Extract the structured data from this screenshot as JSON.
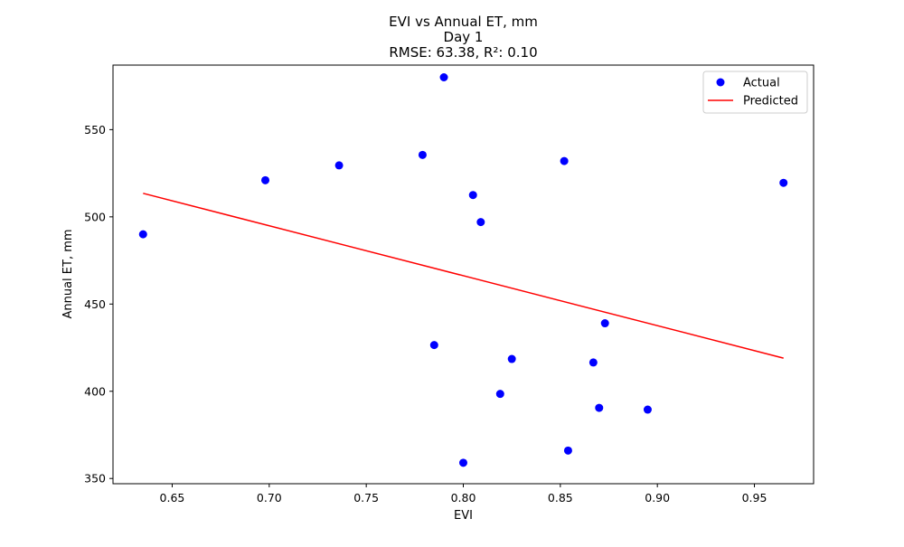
{
  "chart_data": {
    "type": "scatter",
    "title_lines": [
      "EVI vs Annual ET, mm",
      "Day 1",
      "RMSE: 63.38, R²: 0.10"
    ],
    "xlabel": "EVI",
    "ylabel": "Annual ET, mm",
    "xlim": [
      0.6195,
      0.9805
    ],
    "ylim": [
      347,
      587
    ],
    "xticks": [
      0.65,
      0.7,
      0.75,
      0.8,
      0.85,
      0.9,
      0.95
    ],
    "xtick_labels": [
      "0.65",
      "0.70",
      "0.75",
      "0.80",
      "0.85",
      "0.90",
      "0.95"
    ],
    "yticks": [
      350,
      400,
      450,
      500,
      550
    ],
    "ytick_labels": [
      "350",
      "400",
      "450",
      "500",
      "550"
    ],
    "grid": false,
    "legend_position": "top-right",
    "series": [
      {
        "name": "Actual",
        "kind": "scatter",
        "color": "#0000ff",
        "points": [
          {
            "x": 0.635,
            "y": 490
          },
          {
            "x": 0.698,
            "y": 521
          },
          {
            "x": 0.736,
            "y": 529.5
          },
          {
            "x": 0.779,
            "y": 535.5
          },
          {
            "x": 0.785,
            "y": 426.5
          },
          {
            "x": 0.79,
            "y": 580
          },
          {
            "x": 0.8,
            "y": 359
          },
          {
            "x": 0.805,
            "y": 512.5
          },
          {
            "x": 0.809,
            "y": 497
          },
          {
            "x": 0.819,
            "y": 398.5
          },
          {
            "x": 0.825,
            "y": 418.5
          },
          {
            "x": 0.852,
            "y": 532
          },
          {
            "x": 0.854,
            "y": 366
          },
          {
            "x": 0.867,
            "y": 416.5
          },
          {
            "x": 0.87,
            "y": 390.5
          },
          {
            "x": 0.873,
            "y": 439
          },
          {
            "x": 0.895,
            "y": 389.5
          },
          {
            "x": 0.965,
            "y": 519.5
          }
        ]
      },
      {
        "name": "Predicted",
        "kind": "line",
        "color": "#ff0000",
        "points": [
          {
            "x": 0.635,
            "y": 513.5
          },
          {
            "x": 0.965,
            "y": 419
          }
        ]
      }
    ]
  }
}
